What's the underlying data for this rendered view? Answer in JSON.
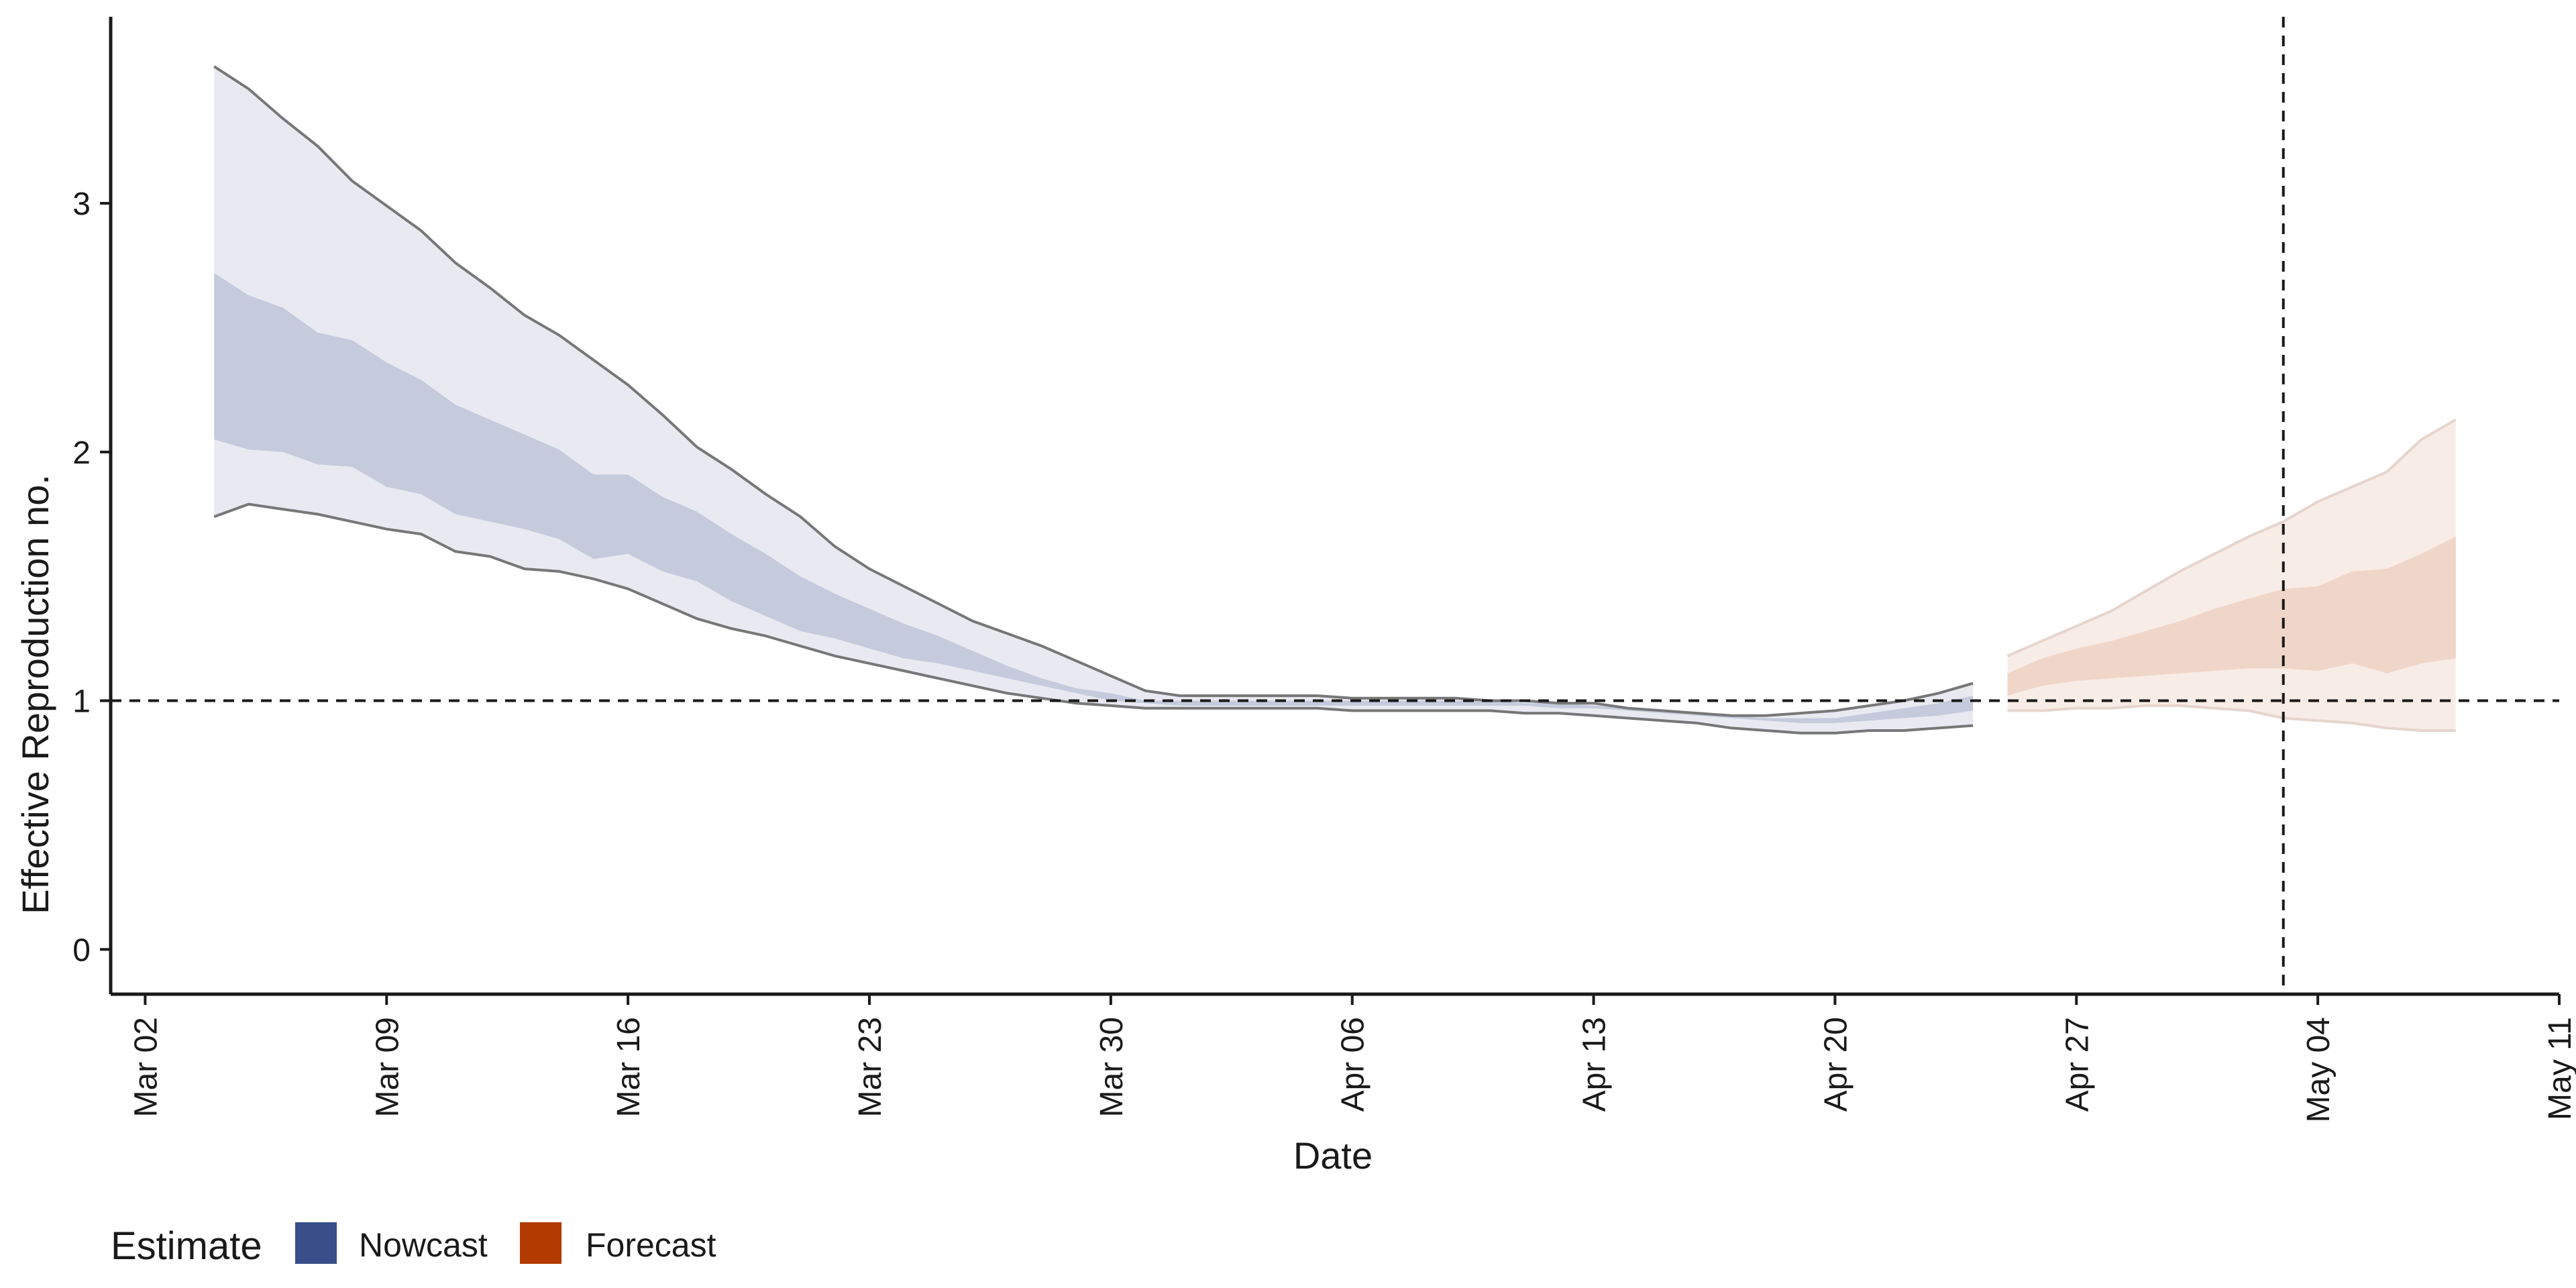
{
  "chart_data": {
    "type": "area",
    "title": "",
    "xlabel": "Date",
    "ylabel": "Effective Reproduction no.",
    "x_ticks": [
      "Mar 02",
      "Mar 09",
      "Mar 16",
      "Mar 23",
      "Mar 30",
      "Apr 06",
      "Apr 13",
      "Apr 20",
      "Apr 27",
      "May 04",
      "May 11"
    ],
    "y_ticks": [
      "0",
      "1",
      "2",
      "3"
    ],
    "xlim": [
      "2020-03-01",
      "2020-05-11"
    ],
    "ylim": [
      -0.18,
      3.75
    ],
    "reference_lines": {
      "horizontal_y": 1,
      "vertical_date": "2020-05-03"
    },
    "grid": false,
    "legend": {
      "title": "Estimate",
      "position": "bottom-left",
      "entries": [
        {
          "label": "Nowcast",
          "color": "#3a4f8a"
        },
        {
          "label": "Forecast",
          "color": "#b33a00"
        }
      ]
    },
    "colors": {
      "nowcast_outer": "#e9eaf1",
      "nowcast_inner": "#c5cbdc",
      "forecast_outer": "#f8ece6",
      "forecast_inner": "#f0d6c9",
      "bound_line": "#777777",
      "forecast_bound_line": "#e5d5cd"
    },
    "series": [
      {
        "name": "Nowcast",
        "x": [
          "2020-03-04",
          "2020-03-05",
          "2020-03-06",
          "2020-03-07",
          "2020-03-08",
          "2020-03-09",
          "2020-03-10",
          "2020-03-11",
          "2020-03-12",
          "2020-03-13",
          "2020-03-14",
          "2020-03-15",
          "2020-03-16",
          "2020-03-17",
          "2020-03-18",
          "2020-03-19",
          "2020-03-20",
          "2020-03-21",
          "2020-03-22",
          "2020-03-23",
          "2020-03-24",
          "2020-03-25",
          "2020-03-26",
          "2020-03-27",
          "2020-03-28",
          "2020-03-29",
          "2020-03-30",
          "2020-03-31",
          "2020-04-01",
          "2020-04-02",
          "2020-04-03",
          "2020-04-04",
          "2020-04-05",
          "2020-04-06",
          "2020-04-07",
          "2020-04-08",
          "2020-04-09",
          "2020-04-10",
          "2020-04-11",
          "2020-04-12",
          "2020-04-13",
          "2020-04-14",
          "2020-04-15",
          "2020-04-16",
          "2020-04-17",
          "2020-04-18",
          "2020-04-19",
          "2020-04-20",
          "2020-04-21",
          "2020-04-22",
          "2020-04-23",
          "2020-04-24"
        ],
        "lower_90": [
          1.74,
          1.79,
          1.77,
          1.75,
          1.72,
          1.69,
          1.67,
          1.6,
          1.58,
          1.53,
          1.52,
          1.49,
          1.45,
          1.39,
          1.33,
          1.29,
          1.26,
          1.22,
          1.18,
          1.15,
          1.12,
          1.09,
          1.06,
          1.03,
          1.01,
          0.99,
          0.98,
          0.97,
          0.97,
          0.97,
          0.97,
          0.97,
          0.97,
          0.96,
          0.96,
          0.96,
          0.96,
          0.96,
          0.95,
          0.95,
          0.94,
          0.93,
          0.92,
          0.91,
          0.89,
          0.88,
          0.87,
          0.87,
          0.88,
          0.88,
          0.89,
          0.9
        ],
        "upper_90": [
          3.55,
          3.46,
          3.34,
          3.23,
          3.09,
          2.99,
          2.89,
          2.76,
          2.66,
          2.55,
          2.47,
          2.37,
          2.27,
          2.15,
          2.02,
          1.93,
          1.83,
          1.74,
          1.62,
          1.53,
          1.46,
          1.39,
          1.32,
          1.27,
          1.22,
          1.16,
          1.1,
          1.04,
          1.02,
          1.02,
          1.02,
          1.02,
          1.02,
          1.01,
          1.01,
          1.01,
          1.01,
          1.0,
          1.0,
          0.99,
          0.99,
          0.97,
          0.96,
          0.95,
          0.94,
          0.94,
          0.95,
          0.96,
          0.98,
          1.0,
          1.03,
          1.07
        ],
        "lower_50": [
          2.05,
          2.01,
          2.0,
          1.95,
          1.94,
          1.86,
          1.83,
          1.75,
          1.72,
          1.69,
          1.65,
          1.57,
          1.59,
          1.52,
          1.48,
          1.4,
          1.34,
          1.28,
          1.25,
          1.21,
          1.17,
          1.15,
          1.12,
          1.09,
          1.06,
          1.03,
          1.0,
          0.99,
          0.98,
          0.98,
          0.98,
          0.98,
          0.98,
          0.98,
          0.98,
          0.98,
          0.98,
          0.98,
          0.98,
          0.97,
          0.97,
          0.96,
          0.95,
          0.94,
          0.93,
          0.92,
          0.91,
          0.91,
          0.92,
          0.93,
          0.94,
          0.96
        ],
        "upper_50": [
          2.72,
          2.63,
          2.58,
          2.48,
          2.45,
          2.36,
          2.29,
          2.19,
          2.13,
          2.07,
          2.01,
          1.91,
          1.91,
          1.82,
          1.76,
          1.67,
          1.59,
          1.5,
          1.43,
          1.37,
          1.31,
          1.26,
          1.2,
          1.14,
          1.09,
          1.05,
          1.03,
          1.0,
          1.0,
          1.0,
          1.0,
          1.0,
          1.0,
          1.0,
          1.0,
          1.0,
          1.0,
          1.0,
          0.99,
          0.99,
          0.98,
          0.97,
          0.96,
          0.95,
          0.94,
          0.93,
          0.93,
          0.93,
          0.95,
          0.97,
          0.99,
          1.02
        ]
      },
      {
        "name": "Forecast",
        "x": [
          "2020-04-25",
          "2020-04-26",
          "2020-04-27",
          "2020-04-28",
          "2020-04-29",
          "2020-04-30",
          "2020-05-01",
          "2020-05-02",
          "2020-05-03",
          "2020-05-04",
          "2020-05-05",
          "2020-05-06",
          "2020-05-07",
          "2020-05-08"
        ],
        "lower_90": [
          0.96,
          0.96,
          0.97,
          0.97,
          0.98,
          0.98,
          0.97,
          0.96,
          0.93,
          0.92,
          0.91,
          0.89,
          0.88,
          0.88
        ],
        "upper_90": [
          1.18,
          1.24,
          1.3,
          1.36,
          1.44,
          1.52,
          1.59,
          1.66,
          1.72,
          1.8,
          1.86,
          1.92,
          2.05,
          2.13
        ],
        "lower_50": [
          1.02,
          1.06,
          1.08,
          1.09,
          1.1,
          1.11,
          1.12,
          1.13,
          1.13,
          1.12,
          1.15,
          1.11,
          1.15,
          1.17
        ],
        "upper_50": [
          1.11,
          1.17,
          1.21,
          1.24,
          1.28,
          1.32,
          1.37,
          1.41,
          1.45,
          1.46,
          1.52,
          1.53,
          1.59,
          1.66
        ]
      }
    ]
  }
}
